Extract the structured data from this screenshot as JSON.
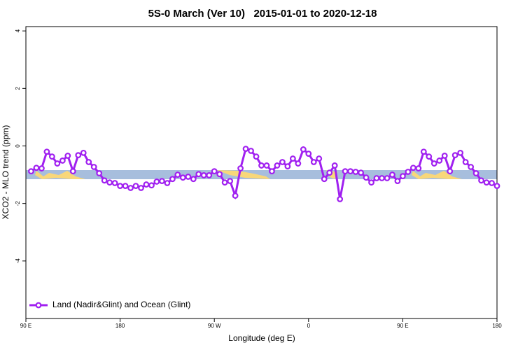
{
  "chart_data": {
    "type": "line",
    "title": "5S-0 March (Ver 10)   2015-01-01 to 2020-12-18",
    "x_label": "Longitude (deg E)",
    "y_label": "XCO2 - MLO trend (ppm)",
    "x": [
      95,
      100,
      105,
      110,
      115,
      120,
      125,
      130,
      135,
      140,
      145,
      150,
      155,
      160,
      165,
      170,
      175,
      180,
      185,
      190,
      195,
      200,
      205,
      210,
      215,
      220,
      225,
      230,
      235,
      240,
      245,
      250,
      255,
      260,
      265,
      270,
      275,
      280,
      285,
      290,
      295,
      300,
      305,
      310,
      315,
      320,
      325,
      330,
      335,
      340,
      345,
      350,
      355,
      360,
      365,
      370,
      375,
      380,
      385,
      390,
      395,
      400,
      405,
      410,
      415,
      420,
      425,
      430,
      435,
      440,
      445,
      450,
      455,
      460,
      465,
      470,
      475,
      480,
      485,
      490,
      495,
      500,
      505,
      510,
      515,
      520,
      525,
      530,
      535,
      540
    ],
    "series": [
      {
        "name": "Land (Nadir&Glint) and Ocean (Glint)",
        "color": "#a020f0",
        "values": [
          -0.88,
          -0.76,
          -0.78,
          -0.2,
          -0.37,
          -0.61,
          -0.51,
          -0.34,
          -0.88,
          -0.32,
          -0.24,
          -0.56,
          -0.73,
          -0.95,
          -1.2,
          -1.27,
          -1.29,
          -1.39,
          -1.39,
          -1.46,
          -1.39,
          -1.46,
          -1.34,
          -1.37,
          -1.24,
          -1.22,
          -1.29,
          -1.15,
          -1.0,
          -1.1,
          -1.07,
          -1.15,
          -0.98,
          -1.02,
          -1.02,
          -0.88,
          -0.98,
          -1.27,
          -1.22,
          -1.73,
          -0.78,
          -0.1,
          -0.17,
          -0.37,
          -0.68,
          -0.68,
          -0.88,
          -0.68,
          -0.56,
          -0.71,
          -0.44,
          -0.61,
          -0.12,
          -0.27,
          -0.56,
          -0.44,
          -1.15,
          -0.93,
          -0.68,
          -1.85,
          -0.88,
          -0.88,
          -0.9,
          -0.93,
          -1.1,
          -1.27,
          -1.12,
          -1.12,
          -1.12,
          -1.0,
          -1.22,
          -1.05,
          -0.9,
          -0.76,
          -0.78,
          -0.2,
          -0.37,
          -0.61,
          -0.51,
          -0.34,
          -0.88,
          -0.32,
          -0.24,
          -0.56,
          -0.73,
          -0.95,
          -1.2,
          -1.27,
          -1.29,
          -1.39
        ]
      }
    ],
    "xlim": [
      90,
      540
    ],
    "xticks": [
      {
        "value": 90,
        "label": "90 E"
      },
      180,
      {
        "value": 270,
        "label": "90 W"
      },
      {
        "value": 360,
        "label": "0"
      },
      {
        "value": 450,
        "label": "90 E"
      },
      {
        "value": 540,
        "label": "180"
      }
    ],
    "ylim": [
      -6,
      4.15
    ],
    "yticks": [
      -4,
      -2,
      0,
      2,
      4
    ],
    "legend": "bottom-left"
  }
}
